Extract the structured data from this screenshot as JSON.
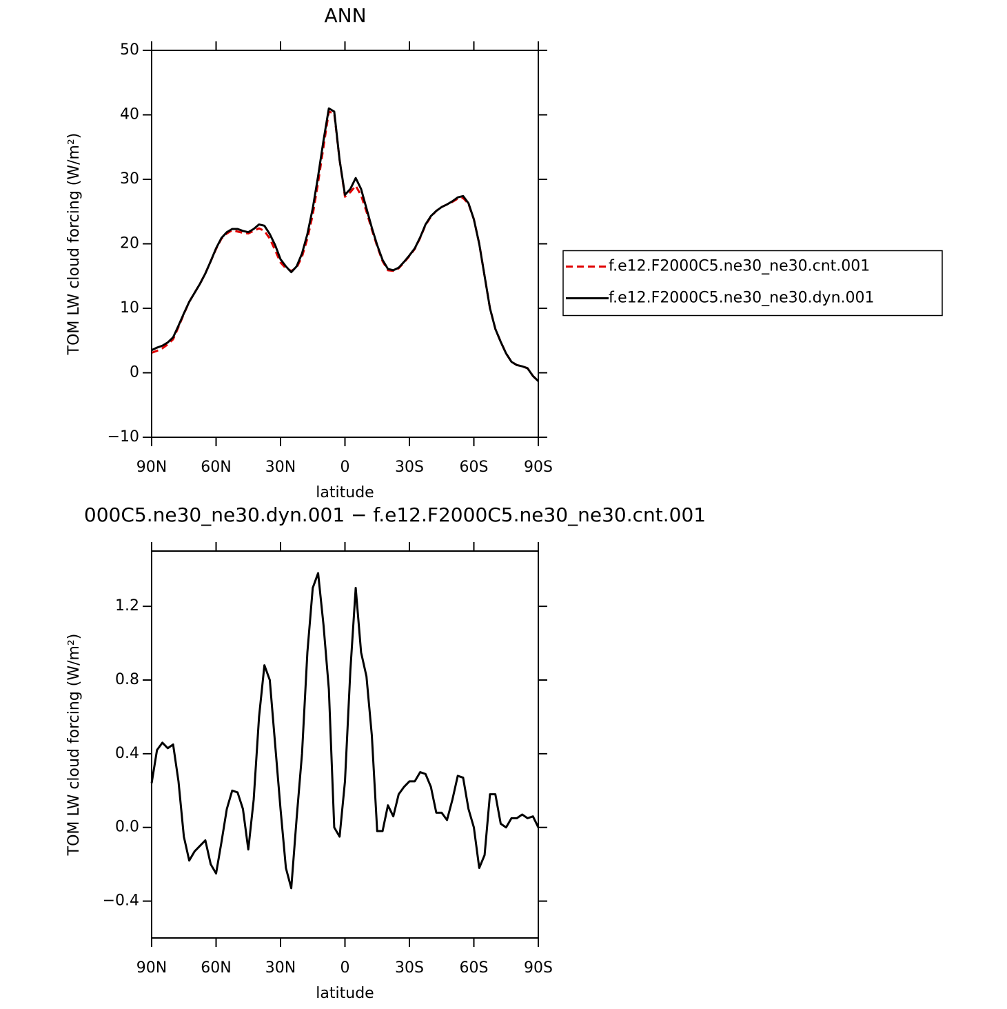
{
  "chart_data": [
    {
      "type": "line",
      "title": "ANN",
      "xlabel": "latitude",
      "ylabel": "TOM LW cloud forcing (W/m²)",
      "x": [
        90,
        87.5,
        85,
        82.5,
        80,
        77.5,
        75,
        72.5,
        70,
        67.5,
        65,
        62.5,
        60,
        57.5,
        55,
        52.5,
        50,
        47.5,
        45,
        42.5,
        40,
        37.5,
        35,
        32.5,
        30,
        27.5,
        25,
        22.5,
        20,
        17.5,
        15,
        12.5,
        10,
        7.5,
        5,
        2.5,
        0,
        -2.5,
        -5,
        -7.5,
        -10,
        -12.5,
        -15,
        -17.5,
        -20,
        -22.5,
        -25,
        -27.5,
        -30,
        -32.5,
        -35,
        -37.5,
        -40,
        -42.5,
        -45,
        -47.5,
        -50,
        -52.5,
        -55,
        -57.5,
        -60,
        -62.5,
        -65,
        -67.5,
        -70,
        -72.5,
        -75,
        -77.5,
        -80,
        -82.5,
        -85,
        -87.5,
        -90
      ],
      "series": [
        {
          "name": "f.e12.F2000C5.ne30_ne30.cnt.001",
          "color": "#e00000",
          "linestyle": "dashed",
          "values": [
            3.1,
            3.4,
            3.8,
            4.4,
            5.2,
            7.1,
            9.1,
            11,
            12.4,
            13.8,
            15.4,
            17.3,
            19.2,
            20.8,
            21.6,
            22.1,
            21.9,
            21.7,
            21.6,
            22,
            22.4,
            22,
            20.8,
            19,
            17.1,
            16.2,
            15.8,
            16.3,
            18,
            20.8,
            24.5,
            29.5,
            35,
            40.5,
            40.2,
            33,
            27.3,
            28,
            29,
            27.5,
            25,
            22.2,
            19.6,
            17.3,
            15.9,
            15.8,
            16.2,
            17.1,
            18.1,
            19.2,
            20.9,
            22.9,
            24.2,
            25.1,
            25.7,
            26.1,
            26.5,
            27,
            27.1,
            26.2,
            23.8,
            20,
            15,
            10,
            6.8,
            4.8,
            3,
            1.7,
            1.2,
            1,
            0.7,
            -0.5,
            -1.3
          ]
        },
        {
          "name": "f.e12.F2000C5.ne30_ne30.dyn.001",
          "color": "#000000",
          "linestyle": "solid",
          "values": [
            3.5,
            3.9,
            4.2,
            4.7,
            5.5,
            7.3,
            9.2,
            11,
            12.4,
            13.8,
            15.4,
            17.3,
            19.3,
            20.9,
            21.8,
            22.3,
            22.3,
            22,
            21.8,
            22.3,
            23,
            22.8,
            21.5,
            19.8,
            17.6,
            16.5,
            15.6,
            16.5,
            18.5,
            21.5,
            25.5,
            30.5,
            36,
            41,
            40.5,
            33,
            27.6,
            28.5,
            30.2,
            28.5,
            25.5,
            22.5,
            19.8,
            17.5,
            16.1,
            15.9,
            16.3,
            17.2,
            18.2,
            19.3,
            21,
            23,
            24.3,
            25.1,
            25.7,
            26.1,
            26.6,
            27.2,
            27.4,
            26.3,
            23.8,
            20,
            15,
            10,
            6.8,
            4.8,
            3,
            1.7,
            1.2,
            1,
            0.7,
            -0.5,
            -1.3
          ]
        }
      ],
      "xlim": [
        90,
        -90
      ],
      "xticks": [
        {
          "value": 90,
          "label": "90N"
        },
        {
          "value": 60,
          "label": "60N"
        },
        {
          "value": 30,
          "label": "30N"
        },
        0,
        {
          "value": -30,
          "label": "30S"
        },
        {
          "value": -60,
          "label": "60S"
        },
        {
          "value": -90,
          "label": "90S"
        }
      ],
      "ylim": [
        -10,
        50
      ],
      "yticks": [
        {
          "value": -10,
          "label": "−10"
        },
        0,
        10,
        20,
        30,
        40,
        50
      ],
      "legend": "right"
    },
    {
      "type": "line",
      "title": "000C5.ne30_ne30.dyn.001 − f.e12.F2000C5.ne30_ne30.cnt.001",
      "xlabel": "latitude",
      "ylabel": "TOM LW cloud forcing (W/m²)",
      "x": [
        90,
        87.5,
        85,
        82.5,
        80,
        77.5,
        75,
        72.5,
        70,
        67.5,
        65,
        62.5,
        60,
        57.5,
        55,
        52.5,
        50,
        47.5,
        45,
        42.5,
        40,
        37.5,
        35,
        32.5,
        30,
        27.5,
        25,
        22.5,
        20,
        17.5,
        15,
        12.5,
        10,
        7.5,
        5,
        2.5,
        0,
        -2.5,
        -5,
        -7.5,
        -10,
        -12.5,
        -15,
        -17.5,
        -20,
        -22.5,
        -25,
        -27.5,
        -30,
        -32.5,
        -35,
        -37.5,
        -40,
        -42.5,
        -45,
        -47.5,
        -50,
        -52.5,
        -55,
        -57.5,
        -60,
        -62.5,
        -65,
        -67.5,
        -70,
        -72.5,
        -75,
        -77.5,
        -80,
        -82.5,
        -85,
        -87.5,
        -90
      ],
      "series": [
        {
          "color": "#000000",
          "linestyle": "solid",
          "values": [
            0.24,
            0.42,
            0.46,
            0.43,
            0.45,
            0.25,
            -0.05,
            -0.18,
            -0.13,
            -0.1,
            -0.07,
            -0.2,
            -0.25,
            -0.08,
            0.1,
            0.2,
            0.19,
            0.1,
            -0.12,
            0.15,
            0.6,
            0.88,
            0.8,
            0.45,
            0.1,
            -0.22,
            -0.33,
            0.05,
            0.4,
            0.95,
            1.3,
            1.38,
            1.1,
            0.75,
            0,
            -0.05,
            0.25,
            0.85,
            1.3,
            0.95,
            0.82,
            0.5,
            -0.02,
            -0.02,
            0.12,
            0.06,
            0.18,
            0.22,
            0.25,
            0.25,
            0.3,
            0.29,
            0.22,
            0.08,
            0.08,
            0.04,
            0.15,
            0.28,
            0.27,
            0.1,
            0,
            -0.22,
            -0.15,
            0.18,
            0.18,
            0.02,
            0,
            0.05,
            0.05,
            0.07,
            0.05,
            0.06,
            0
          ]
        }
      ],
      "xlim": [
        90,
        -90
      ],
      "xticks": [
        {
          "value": 90,
          "label": "90N"
        },
        {
          "value": 60,
          "label": "60N"
        },
        {
          "value": 30,
          "label": "30N"
        },
        0,
        {
          "value": -30,
          "label": "30S"
        },
        {
          "value": -60,
          "label": "60S"
        },
        {
          "value": -90,
          "label": "90S"
        }
      ],
      "ylim": [
        -0.6,
        1.5
      ],
      "yticks": [
        {
          "value": -0.4,
          "label": "−0.4"
        },
        {
          "value": 0,
          "label": "0.0"
        },
        0.4,
        0.8,
        1.2
      ]
    }
  ]
}
